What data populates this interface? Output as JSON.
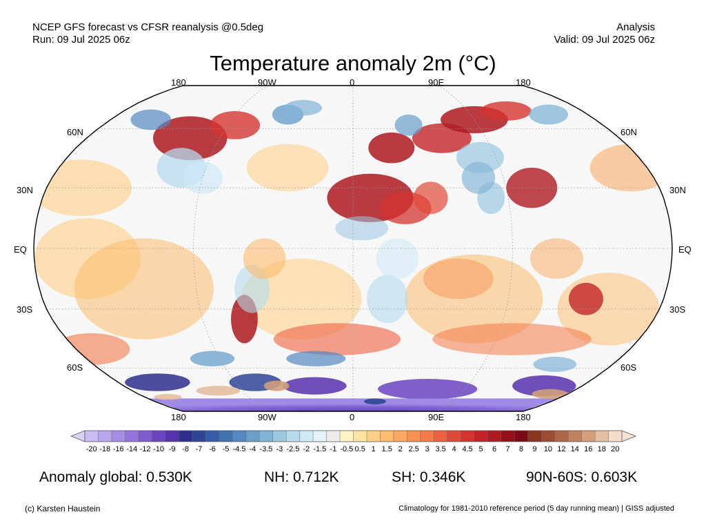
{
  "header": {
    "source_line": "NCEP GFS forecast vs CFSR reanalysis @0.5deg",
    "run_line": "Run: 09 Jul 2025 06z",
    "type_line": "Analysis",
    "valid_line": "Valid: 09 Jul 2025 06z"
  },
  "title": "Temperature anomaly 2m (°C)",
  "map": {
    "projection": "Robinson",
    "top_lon_labels": [
      "180",
      "90W",
      "0",
      "90E",
      "180"
    ],
    "bottom_lon_labels": [
      "180",
      "90W",
      "0",
      "90E",
      "180"
    ],
    "left_lat_labels": [
      "60N",
      "30N",
      "EQ",
      "30S",
      "60S"
    ],
    "right_lat_labels": [
      "60N",
      "30N",
      "EQ",
      "30S",
      "60S"
    ],
    "background_color": "#f7f7f7",
    "graticule_color": "#9a9a9a"
  },
  "colorbar": {
    "tick_labels": [
      "-20",
      "-18",
      "-16",
      "-14",
      "-12",
      "-10",
      "-9",
      "-8",
      "-7",
      "-6",
      "-5",
      "-4.5",
      "-4",
      "-3.5",
      "-3",
      "-2.5",
      "-2",
      "-1.5",
      "-1",
      "-0.5",
      "0.5",
      "1",
      "1.5",
      "2",
      "2.5",
      "3",
      "3.5",
      "4",
      "4.5",
      "5",
      "6",
      "7",
      "8",
      "9",
      "10",
      "12",
      "14",
      "16",
      "18",
      "20"
    ],
    "colors": [
      "#c8bcf2",
      "#b8a6ee",
      "#a58de6",
      "#9274dc",
      "#7e5ccf",
      "#6a45bf",
      "#5732ad",
      "#2e2f8c",
      "#2f4596",
      "#355ca6",
      "#4372b3",
      "#5488c0",
      "#6a9fcc",
      "#82b4d8",
      "#9cc8e2",
      "#b6dbec",
      "#cfe9f5",
      "#e6f3fa",
      "#ececec",
      "#fff3c4",
      "#ffe3a0",
      "#fecf84",
      "#fdbc6e",
      "#fca85e",
      "#f99152",
      "#f47a48",
      "#ec6140",
      "#e04a38",
      "#d33430",
      "#c22428",
      "#ae1a22",
      "#96101c",
      "#7a0a15",
      "#8a3422",
      "#9c4d33",
      "#ae6849",
      "#c0835f",
      "#d29f7a",
      "#e3bea0",
      "#f3dccb"
    ],
    "under_color": "#d8d0f7",
    "over_color": "#f7e1d6"
  },
  "stats": {
    "global": "Anomaly global: 0.530K",
    "nh": "NH: 0.712K",
    "sh": "SH: 0.346K",
    "arctic": "90N-60S: 0.603K"
  },
  "footer": {
    "credit": "(c) Karsten Haustein",
    "note": "Climatology for 1981-2010 reference period (5 day running mean) | GISS adjusted"
  }
}
